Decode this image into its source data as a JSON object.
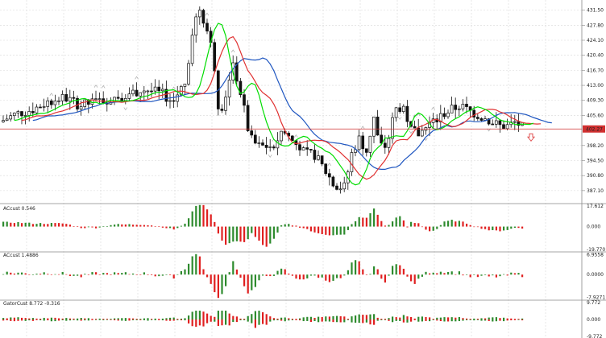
{
  "chart_data": {
    "type": "candlestick",
    "current_price": {
      "label": "402.27",
      "value": 402.27,
      "color": "#d03030"
    },
    "price_axis": {
      "ticks": [
        "431.50",
        "427.80",
        "424.10",
        "420.40",
        "416.70",
        "413.00",
        "409.30",
        "405.60",
        "402.27",
        "398.20",
        "394.50",
        "390.80",
        "387.10"
      ],
      "values": [
        431.5,
        427.8,
        424.1,
        420.4,
        416.7,
        413.0,
        409.3,
        405.6,
        402.27,
        398.2,
        394.5,
        390.8,
        387.1
      ],
      "range": [
        384.5,
        434.0
      ]
    },
    "indicators": [
      {
        "title": "ACcust 0.546",
        "scale": [
          "17.612",
          "0.000",
          "-19.770"
        ],
        "scale_values": [
          17.612,
          0,
          -19.77
        ],
        "range": [
          -21,
          19
        ]
      },
      {
        "title": "ACcust 1.4886",
        "scale": [
          "6.9558",
          "0.0000",
          "-7.9271"
        ],
        "scale_values": [
          6.9558,
          0,
          -7.9271
        ],
        "range": [
          -8.6,
          7.6
        ]
      },
      {
        "title": "GatorCust 8.772 -0.316",
        "scale": [
          "9.772",
          "0.000",
          "-9.772"
        ],
        "scale_values": [
          9.772,
          0,
          -9.772
        ],
        "range": [
          -10.6,
          10.6
        ]
      }
    ],
    "colors": {
      "up": "#2e8b2e",
      "down": "#e02020",
      "candle": "#111111",
      "ma_fast": "#00dd00",
      "ma_mid": "#e03030",
      "ma_slow": "#1f56c0",
      "grid": "#d8d8d8",
      "arrow": "#f0a0a0",
      "fractal": "#aaaaaa"
    }
  }
}
